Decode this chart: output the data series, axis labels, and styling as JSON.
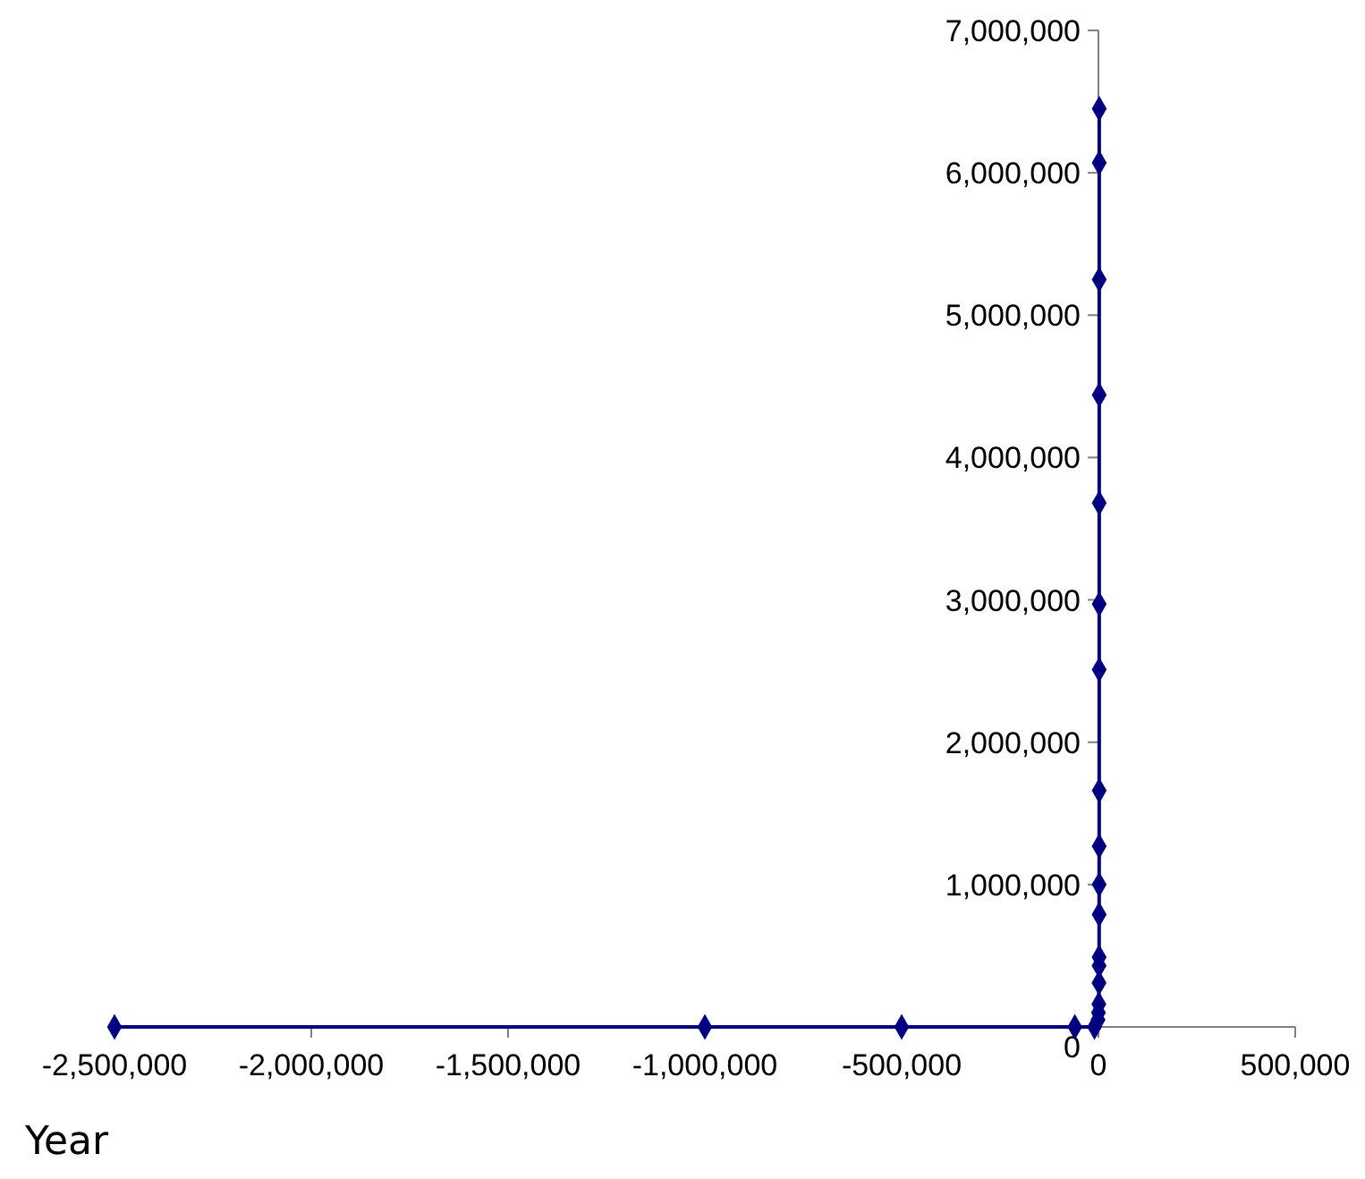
{
  "chart_data": {
    "type": "line",
    "xlabel": "Year",
    "x": [
      -2500000,
      -1000000,
      -500000,
      -60000,
      -10000,
      -1000,
      1,
      1000,
      1500,
      1600,
      1700,
      1800,
      1850,
      1900,
      1920,
      1950,
      1960,
      1970,
      1980,
      1990,
      2000,
      2005
    ],
    "series": [
      {
        "color": "#000080",
        "values": [
          0,
          0,
          0,
          0,
          0,
          50000,
          100000,
          160000,
          310000,
          430000,
          490000,
          790000,
          1000000,
          1270000,
          1660000,
          2510000,
          2970000,
          3680000,
          4440000,
          5250000,
          6070000,
          6450000
        ]
      }
    ],
    "xlim": [
      -2500000,
      500000
    ],
    "xticks": [
      {
        "value": -2500000,
        "label": "-2,500,000"
      },
      {
        "value": -2000000,
        "label": "-2,000,000"
      },
      {
        "value": -1500000,
        "label": "-1,500,000"
      },
      {
        "value": -1000000,
        "label": "-1,000,000"
      },
      {
        "value": -500000,
        "label": "-500,000"
      },
      {
        "value": 0,
        "label": "0"
      },
      {
        "value": 500000,
        "label": "500,000"
      }
    ],
    "ylim": [
      0,
      7000000
    ],
    "yticks": [
      {
        "value": 0,
        "label": "0"
      },
      {
        "value": 1000000,
        "label": "1,000,000"
      },
      {
        "value": 2000000,
        "label": "2,000,000"
      },
      {
        "value": 3000000,
        "label": "3,000,000"
      },
      {
        "value": 4000000,
        "label": "4,000,000"
      },
      {
        "value": 5000000,
        "label": "5,000,000"
      },
      {
        "value": 6000000,
        "label": "6,000,000"
      },
      {
        "value": 7000000,
        "label": "7,000,000"
      }
    ],
    "marker": "diamond",
    "grid": false
  }
}
